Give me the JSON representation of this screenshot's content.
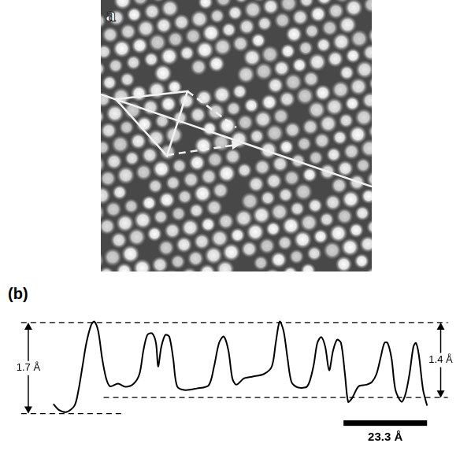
{
  "panel_a": {
    "label": "a"
  },
  "panel_b": {
    "label": "(b)"
  },
  "chart_data": {
    "type": "line",
    "x": [
      0,
      1.5,
      3.7,
      5.9,
      7.0,
      8.1,
      9.2,
      10.5,
      11.4,
      12.5,
      13.6,
      14.7,
      15.8,
      18.0,
      20.2,
      22.4,
      24.0,
      25.1,
      26.2,
      27.5,
      28.6,
      29.2,
      30.1,
      31.2,
      32.3,
      33.4,
      34.5,
      36.7,
      40.0,
      43.3,
      44.8,
      46.2,
      47.5,
      48.8,
      49.9,
      51.0,
      53.2,
      55.4,
      58.7,
      60.9,
      62.0,
      63.1,
      64.2,
      65.3,
      66.4,
      68.1,
      70.8,
      72.5,
      73.6,
      74.7,
      75.8,
      76.9,
      78.0,
      79.1,
      80.2,
      81.3,
      82.2,
      83.3,
      85.1,
      87.3,
      88.8,
      90.1,
      91.2,
      92.3,
      93.2,
      94.3,
      95.4,
      97.1,
      98.2,
      99.3,
      100.4,
      101.1,
      101.9,
      103.1,
      104.2
    ],
    "values": [
      0.18,
      0.07,
      0.03,
      0.15,
      0.44,
      0.88,
      1.32,
      1.65,
      1.72,
      1.54,
      1.03,
      0.66,
      0.51,
      0.56,
      0.5,
      0.56,
      0.74,
      1.18,
      1.47,
      1.5,
      1.32,
      0.88,
      1.25,
      1.47,
      1.44,
      1.03,
      0.51,
      0.44,
      0.47,
      0.53,
      0.88,
      1.32,
      1.44,
      1.18,
      0.66,
      0.54,
      0.66,
      0.69,
      0.74,
      0.88,
      1.32,
      1.72,
      1.54,
      1.03,
      0.59,
      0.49,
      0.51,
      0.88,
      1.32,
      1.43,
      1.25,
      0.81,
      1.18,
      1.38,
      1.32,
      0.74,
      0.22,
      0.29,
      0.51,
      0.54,
      0.59,
      0.74,
      1.03,
      1.32,
      1.32,
      1.03,
      0.44,
      0.22,
      0.37,
      0.74,
      1.25,
      1.32,
      1.1,
      0.44,
      0.15
    ],
    "color": "#000000",
    "xlim": [
      -10.5,
      112.5
    ],
    "ylim": [
      -0.8,
      1.92
    ],
    "tick_labels": false,
    "grid": false,
    "reference_lines": [
      {
        "y": 0,
        "x": [
          -9,
          20
        ]
      },
      {
        "y": 1.7,
        "x": [
          -9,
          110
        ]
      },
      {
        "y": 0.3,
        "x": [
          14,
          110
        ]
      }
    ],
    "annotations": [
      {
        "label": "1.7 Å",
        "value": 1.7,
        "from": 0,
        "x": -7
      },
      {
        "label": "1.4 Å",
        "value": 1.4,
        "from": 0.3,
        "x": 108
      }
    ],
    "scale_bar": {
      "label": "23.3 Å",
      "length": 23.3,
      "y": -0.17
    }
  }
}
